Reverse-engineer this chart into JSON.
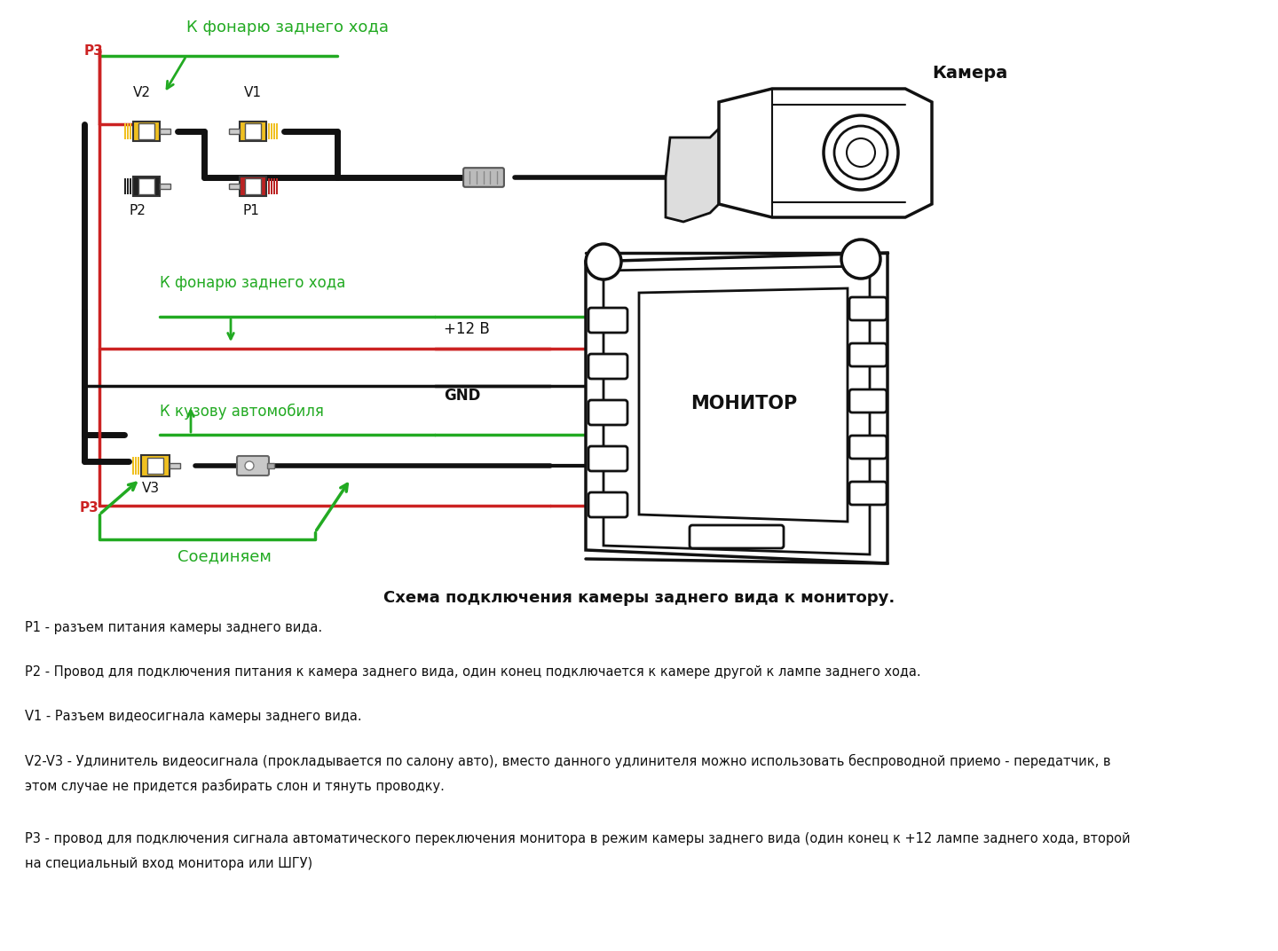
{
  "title": "Схема подключения камеры заднего вида к монитору.",
  "bg_color": "#ffffff",
  "green_color": "#22aa22",
  "red_color": "#cc2222",
  "black_color": "#111111",
  "yellow_color": "#f0c020",
  "gray_color": "#aaaaaa",
  "darkgray_color": "#666666",
  "text_color": "#111111",
  "descriptions": [
    "P1 - разъем питания камеры заднего вида.",
    "P2 - Провод для подключения питания к камера заднего вида, один конец подключается к камере другой к лампе заднего хода.",
    "V1 - Разъем видеосигнала камеры заднего вида.",
    "V2-V3 - Удлинитель видеосигнала (прокладывается по салону авто), вместо данного удлинителя можно использовать беспроводной приемо - передатчик, в этом случае не придется разбирать слон и тянуть проводку.",
    "Р3 - провод для подключения сигнала автоматического переключения монитора в режим камеры заднего вида (один конец к +12 лампе заднего хода, второй на специальный вход монитора или ШГУ)"
  ],
  "labels": {
    "k_fonarju": "К фонарю заднего хода",
    "kamera": "Камера",
    "monitor": "МОНИТОР",
    "plus12": "+12 В",
    "gnd": "GND",
    "k_fonarju2": "К фонарю заднего хода",
    "k_kuzovu": "К кузову автомобиля",
    "soedinyaem": "Соединяем",
    "p3": "P3",
    "p2": "P2",
    "p1": "P1",
    "v1": "V1",
    "v2": "V2",
    "v3": "V3"
  }
}
